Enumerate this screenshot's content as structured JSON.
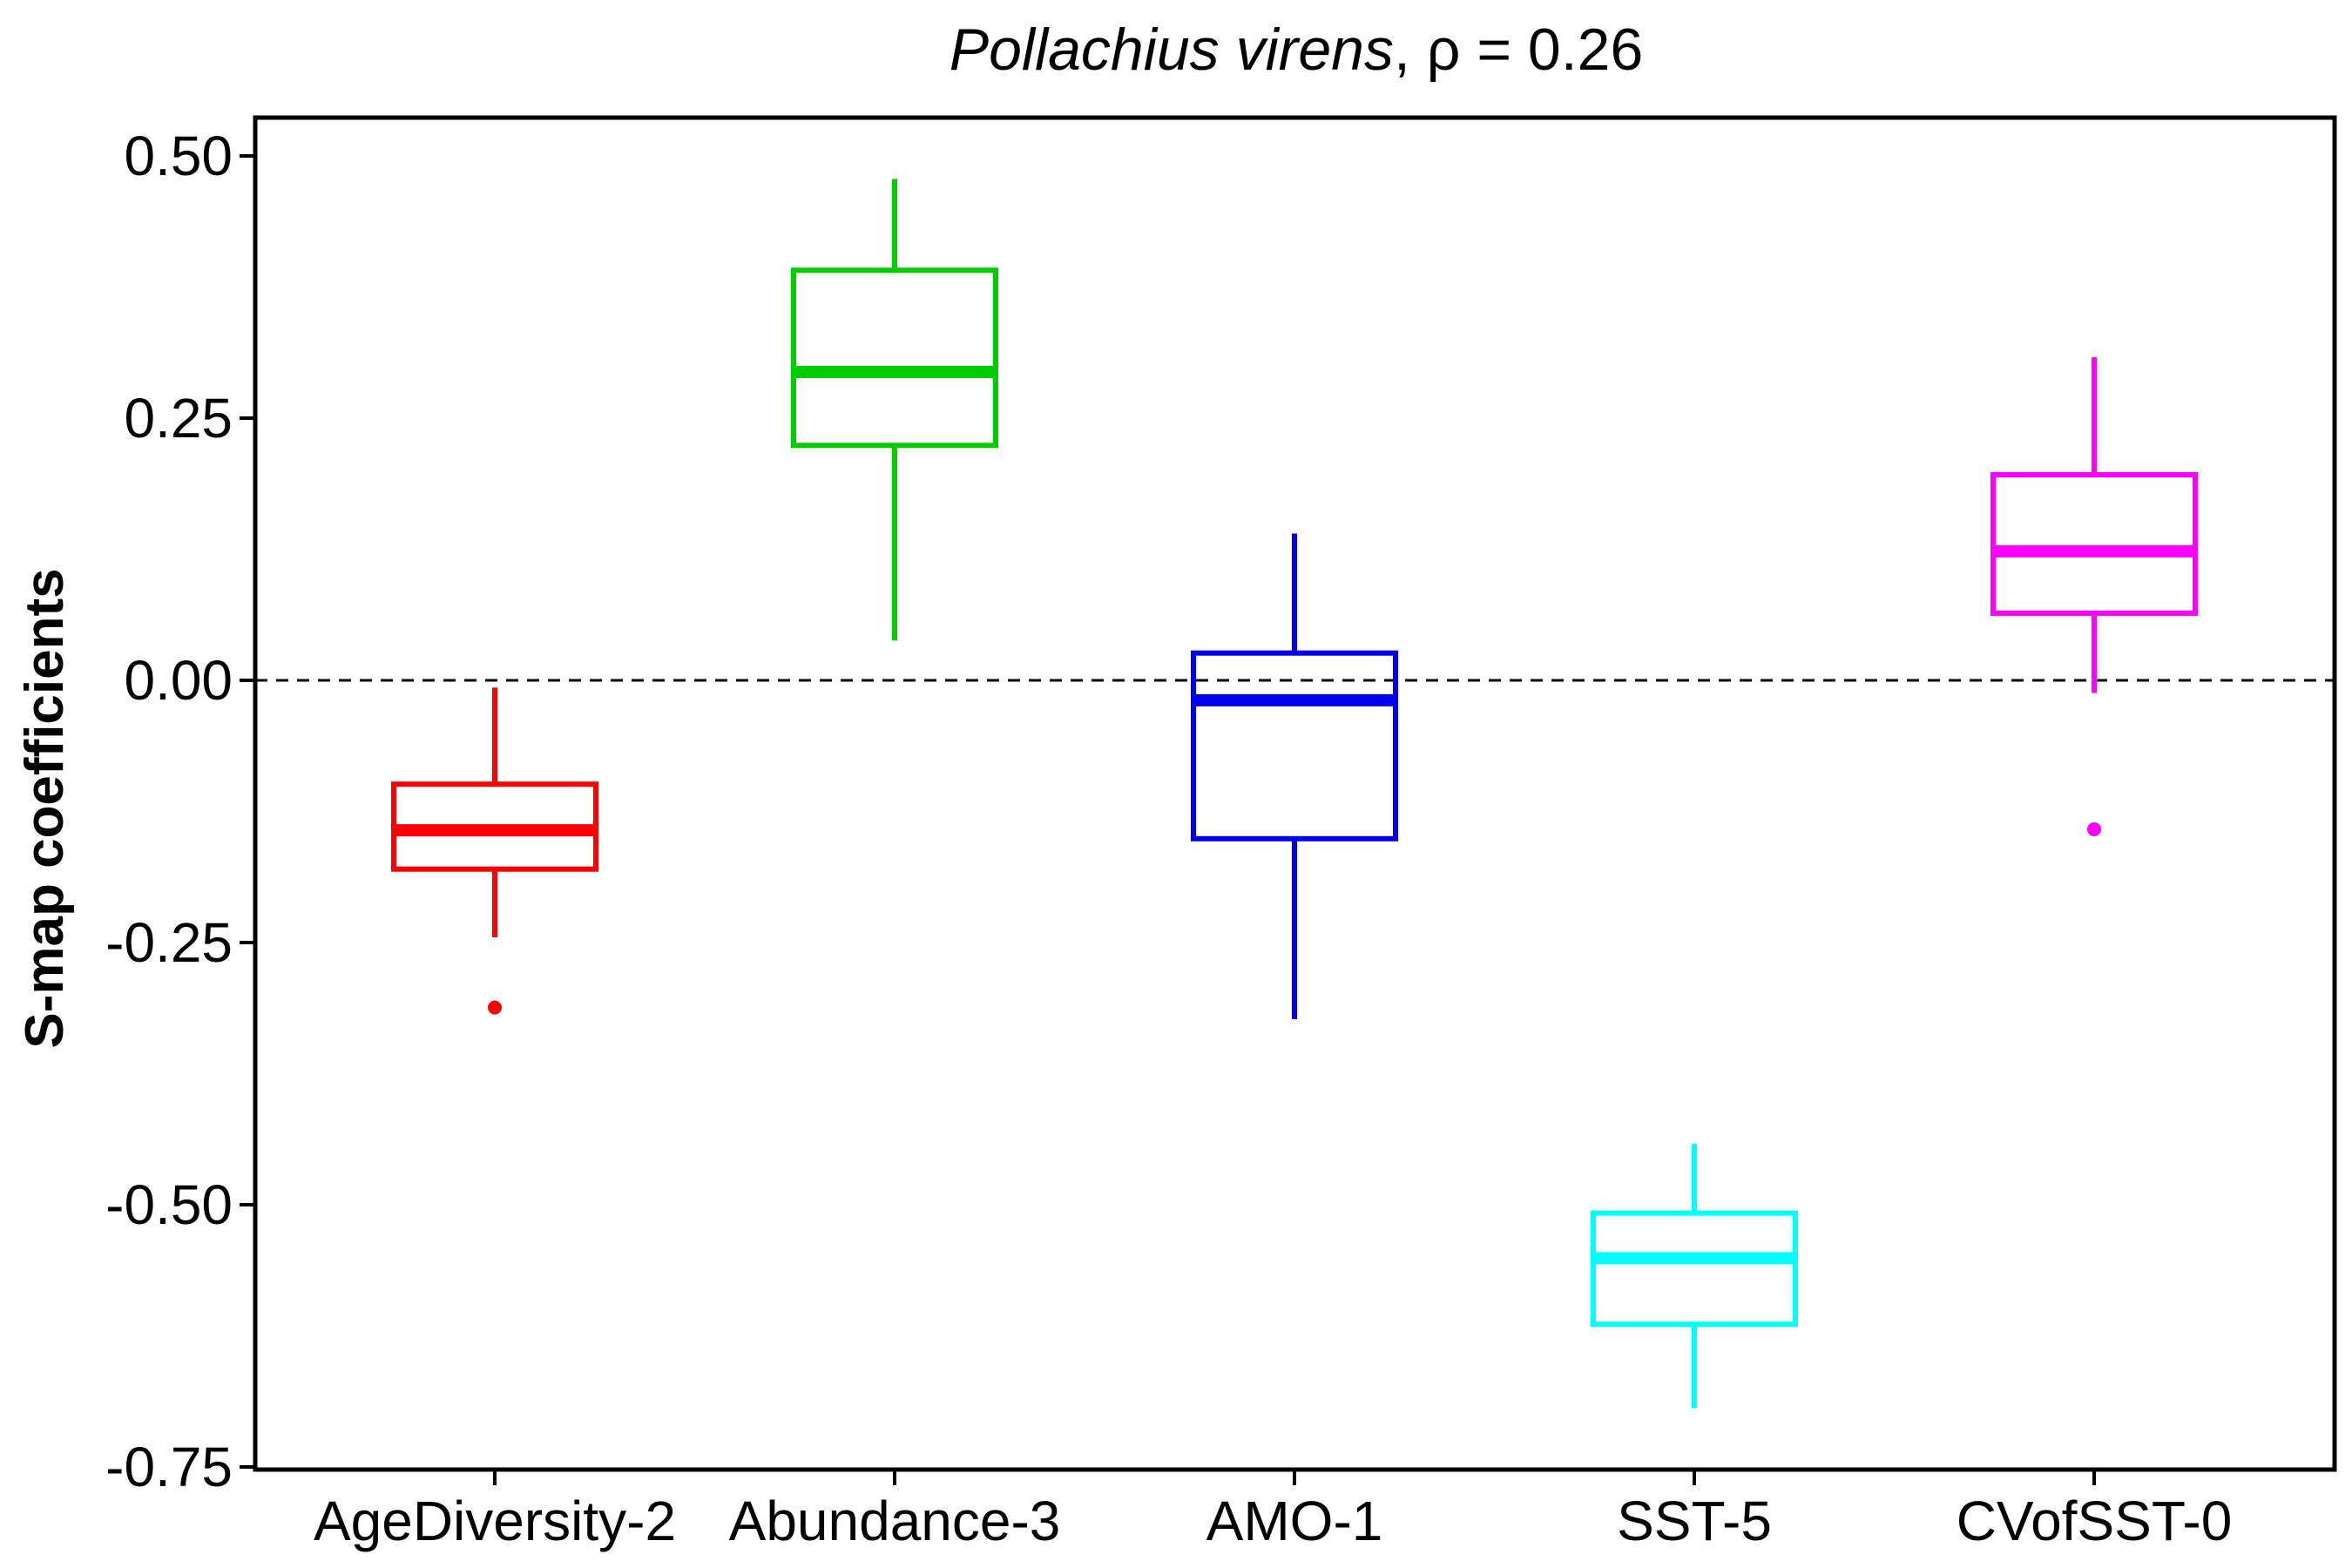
{
  "chart_data": {
    "type": "box",
    "title_italic": "Pollachius virens",
    "title_rest": ", ρ = 0.26",
    "xlabel": "",
    "ylabel": "S-map coefficients",
    "ylim": [
      -0.75,
      0.535
    ],
    "yticks": [
      0.5,
      0.25,
      0.0,
      -0.25,
      -0.5,
      -0.75
    ],
    "ytick_labels": [
      "0.50",
      "0.25",
      "0.00",
      "-0.25",
      "-0.50",
      "-0.75"
    ],
    "reference_line": 0.0,
    "grid": false,
    "categories": [
      "AgeDiversity-2",
      "Abundance-3",
      "AMO-1",
      "SST-5",
      "CVofSST-0"
    ],
    "boxes": [
      {
        "category": "AgeDiversity-2",
        "color": "#ff0000",
        "whisker_low": -0.245,
        "q1": -0.18,
        "median": -0.143,
        "q3": -0.099,
        "whisker_high": -0.007,
        "outliers": [
          -0.312
        ]
      },
      {
        "category": "Abundance-3",
        "color": "#00cc00",
        "whisker_low": 0.038,
        "q1": 0.224,
        "median": 0.294,
        "q3": 0.391,
        "whisker_high": 0.478,
        "outliers": []
      },
      {
        "category": "AMO-1",
        "color": "#0000ee",
        "whisker_low": -0.323,
        "q1": -0.151,
        "median": -0.019,
        "q3": 0.026,
        "whisker_high": 0.14,
        "outliers": []
      },
      {
        "category": "SST-5",
        "color": "#00ffff",
        "whisker_low": -0.694,
        "q1": -0.614,
        "median": -0.551,
        "q3": -0.508,
        "whisker_high": -0.442,
        "outliers": []
      },
      {
        "category": "CVofSST-0",
        "color": "#ff00ff",
        "whisker_low": -0.012,
        "q1": 0.064,
        "median": 0.123,
        "q3": 0.196,
        "whisker_high": 0.308,
        "outliers": [
          -0.142
        ]
      }
    ]
  }
}
